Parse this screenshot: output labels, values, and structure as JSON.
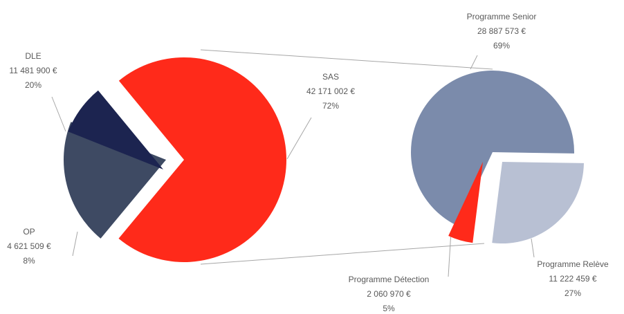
{
  "chart_data": [
    {
      "type": "pie",
      "categories": [
        "SAS",
        "DLE",
        "OP"
      ],
      "values": [
        72,
        20,
        8
      ],
      "value_labels": [
        "72%",
        "20%",
        "8%"
      ],
      "amounts": [
        42171002,
        11481900,
        4621509
      ],
      "amount_labels": [
        "42 171 002 €",
        "11 481 900 €",
        "4 621 509 €"
      ],
      "colors": [
        "#ff2a1a",
        "#3e4a63",
        "#1c2450"
      ]
    },
    {
      "type": "pie",
      "categories": [
        "Programme Senior",
        "Programme Relève",
        "Programme Détection"
      ],
      "values": [
        69,
        27,
        5
      ],
      "value_labels": [
        "69%",
        "27%",
        "5%"
      ],
      "amounts": [
        28887573,
        11222459,
        2060970
      ],
      "amount_labels": [
        "28 887 573 €",
        "11 222 459 €",
        "2 060 970 €"
      ],
      "colors": [
        "#7b8bab",
        "#b8c0d3",
        "#ff2a1a"
      ]
    }
  ]
}
